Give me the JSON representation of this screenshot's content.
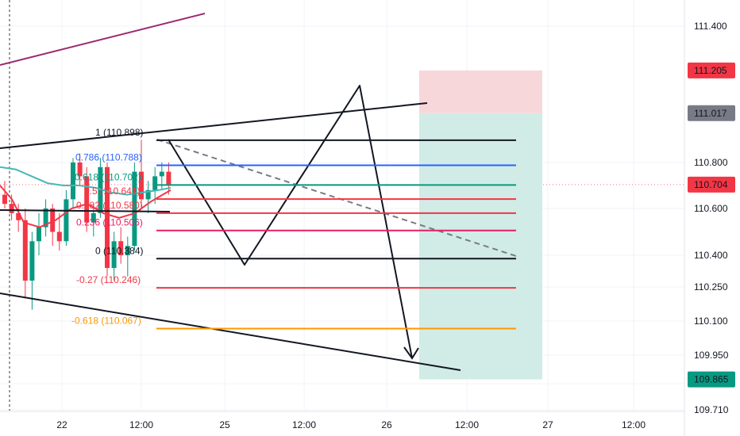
{
  "price_axis": {
    "ticks": [
      "111.400",
      "110.800",
      "110.600",
      "110.400",
      "110.250",
      "110.100",
      "109.950",
      "109.850",
      "109.710"
    ],
    "tick_values": [
      111.4,
      110.8,
      110.6,
      110.4,
      110.25,
      110.1,
      109.95,
      109.85,
      109.71
    ],
    "badges": [
      {
        "label": "111.205",
        "value": 111.205,
        "color": "#f23645"
      },
      {
        "label": "111.017",
        "value": 111.017,
        "color": "#787b86"
      },
      {
        "label": "110.704",
        "value": 110.704,
        "color": "#f23645"
      },
      {
        "label": "109.865",
        "value": 109.865,
        "color": "#089981"
      }
    ]
  },
  "time_axis": {
    "labels": [
      "22",
      "12:00",
      "25",
      "12:00",
      "26",
      "12:00",
      "27",
      "12:00"
    ]
  },
  "fib_levels": [
    {
      "text": "1 (110.898)",
      "ratio": 1,
      "price": 110.898,
      "color": "#131722"
    },
    {
      "text": "0.786 (110.788)",
      "ratio": 0.786,
      "price": 110.788,
      "color": "#2962ff"
    },
    {
      "text": "0.618 (110.702)",
      "ratio": 0.618,
      "price": 110.702,
      "color": "#089981"
    },
    {
      "text": "0.5 (110.641)",
      "ratio": 0.5,
      "price": 110.641,
      "color": "#f23645"
    },
    {
      "text": "0.382 (110.580)",
      "ratio": 0.382,
      "price": 110.58,
      "color": "#f23645"
    },
    {
      "text": "0.236 (110.506)",
      "ratio": 0.236,
      "price": 110.506,
      "color": "#e91e63"
    },
    {
      "text": "0 (110.384)",
      "ratio": 0,
      "price": 110.384,
      "color": "#131722"
    },
    {
      "text": "-0.27 (110.246)",
      "ratio": -0.27,
      "price": 110.246,
      "color": "#f23645"
    },
    {
      "text": "-0.618 (110.067)",
      "ratio": -0.618,
      "price": 110.067,
      "color": "#ff9800"
    }
  ],
  "position": {
    "stop_price": 111.205,
    "entry_price": 111.017,
    "target_price": 109.865,
    "stop_color": "#f8d7da",
    "target_color": "#d1ece6"
  },
  "colors": {
    "up": "#089981",
    "down": "#f23645",
    "ma_red": "#f23645",
    "ma_teal": "#48b8b6",
    "purple_line": "#9c2770",
    "grid": "#f0f3fa",
    "border": "#e0e3eb",
    "dashed": "#787b86"
  }
}
